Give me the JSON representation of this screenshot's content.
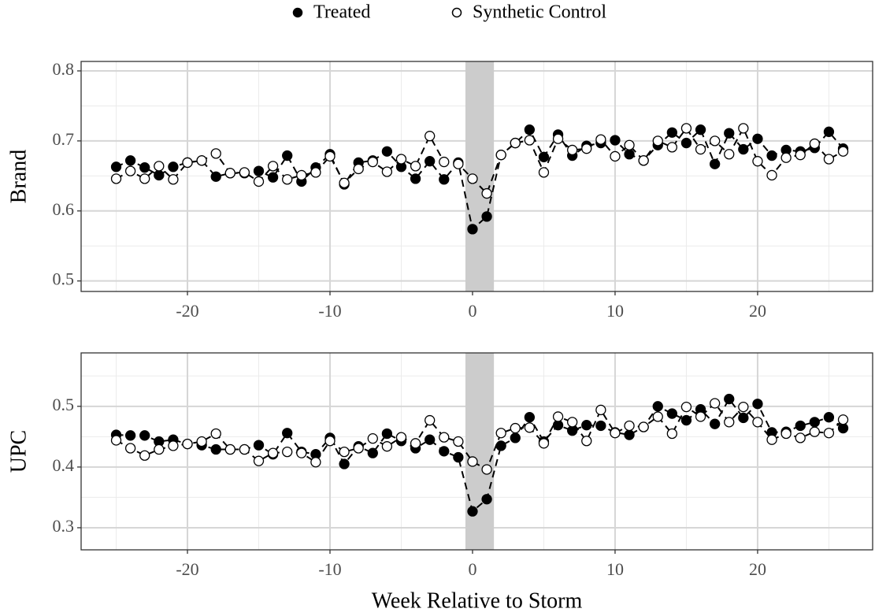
{
  "chart_data": [
    {
      "type": "line",
      "ylabel": "Brand",
      "x": [
        -25,
        -24,
        -23,
        -22,
        -21,
        -20,
        -19,
        -18,
        -17,
        -16,
        -15,
        -14,
        -13,
        -12,
        -11,
        -10,
        -9,
        -8,
        -7,
        -6,
        -5,
        -4,
        -3,
        -2,
        -1,
        0,
        1,
        2,
        3,
        4,
        5,
        6,
        7,
        8,
        9,
        10,
        11,
        12,
        13,
        14,
        15,
        16,
        17,
        18,
        19,
        20,
        21,
        22,
        23,
        24,
        25,
        26
      ],
      "series": [
        {
          "name": "Treated",
          "color": "#000000",
          "marker": "filled",
          "values": [
            0.663,
            0.672,
            0.662,
            0.651,
            0.663,
            0.669,
            0.672,
            0.649,
            0.654,
            0.654,
            0.657,
            0.648,
            0.679,
            0.642,
            0.662,
            0.681,
            0.638,
            0.669,
            0.672,
            0.685,
            0.663,
            0.646,
            0.671,
            0.645,
            0.669,
            0.574,
            0.592,
            0.68,
            0.697,
            0.716,
            0.677,
            0.709,
            0.679,
            0.693,
            0.697,
            0.701,
            0.681,
            0.672,
            0.694,
            0.712,
            0.697,
            0.716,
            0.667,
            0.711,
            0.688,
            0.703,
            0.679,
            0.687,
            0.685,
            0.69,
            0.713,
            0.689
          ]
        },
        {
          "name": "Synthetic Control",
          "color": "#000000",
          "marker": "open",
          "values": [
            0.646,
            0.657,
            0.646,
            0.664,
            0.645,
            0.669,
            0.672,
            0.682,
            0.654,
            0.655,
            0.642,
            0.664,
            0.645,
            0.651,
            0.655,
            0.678,
            0.64,
            0.66,
            0.67,
            0.656,
            0.674,
            0.664,
            0.707,
            0.67,
            0.667,
            0.646,
            0.625,
            0.68,
            0.697,
            0.701,
            0.655,
            0.703,
            0.687,
            0.689,
            0.702,
            0.678,
            0.694,
            0.672,
            0.7,
            0.691,
            0.718,
            0.688,
            0.7,
            0.681,
            0.718,
            0.671,
            0.651,
            0.676,
            0.68,
            0.696,
            0.674,
            0.685
          ]
        }
      ],
      "highlight_x": [
        -0.5,
        1.5
      ],
      "xlim": [
        -27.46,
        28.07
      ],
      "xticks": [
        -20,
        -10,
        0,
        10,
        20
      ],
      "xminor": [
        -25,
        -15,
        -5,
        5,
        15,
        25
      ],
      "ylim": [
        0.485,
        0.8135
      ],
      "yticks": [
        0.5,
        0.6,
        0.7,
        0.8
      ],
      "yminor": [
        0.55,
        0.65,
        0.75
      ],
      "grid": true
    },
    {
      "type": "line",
      "ylabel": "UPC",
      "xlabel": "Week Relative to Storm",
      "x": [
        -25,
        -24,
        -23,
        -22,
        -21,
        -20,
        -19,
        -18,
        -17,
        -16,
        -15,
        -14,
        -13,
        -12,
        -11,
        -10,
        -9,
        -8,
        -7,
        -6,
        -5,
        -4,
        -3,
        -2,
        -1,
        0,
        1,
        2,
        3,
        4,
        5,
        6,
        7,
        8,
        9,
        10,
        11,
        12,
        13,
        14,
        15,
        16,
        17,
        18,
        19,
        20,
        21,
        22,
        23,
        24,
        25,
        26
      ],
      "series": [
        {
          "name": "Treated",
          "color": "#000000",
          "marker": "filled",
          "values": [
            0.453,
            0.452,
            0.452,
            0.442,
            0.445,
            0.438,
            0.436,
            0.429,
            0.429,
            0.429,
            0.436,
            0.421,
            0.456,
            0.425,
            0.421,
            0.448,
            0.405,
            0.434,
            0.423,
            0.455,
            0.443,
            0.431,
            0.445,
            0.426,
            0.416,
            0.327,
            0.347,
            0.435,
            0.448,
            0.482,
            0.442,
            0.469,
            0.46,
            0.469,
            0.468,
            0.457,
            0.453,
            0.466,
            0.5,
            0.488,
            0.477,
            0.495,
            0.471,
            0.512,
            0.481,
            0.504,
            0.457,
            0.458,
            0.468,
            0.474,
            0.482,
            0.464
          ]
        },
        {
          "name": "Synthetic Control",
          "color": "#000000",
          "marker": "open",
          "values": [
            0.444,
            0.431,
            0.419,
            0.429,
            0.435,
            0.438,
            0.442,
            0.455,
            0.429,
            0.429,
            0.41,
            0.423,
            0.425,
            0.423,
            0.408,
            0.443,
            0.425,
            0.431,
            0.447,
            0.434,
            0.449,
            0.439,
            0.477,
            0.449,
            0.442,
            0.409,
            0.396,
            0.456,
            0.464,
            0.465,
            0.439,
            0.483,
            0.474,
            0.443,
            0.494,
            0.456,
            0.468,
            0.466,
            0.483,
            0.455,
            0.499,
            0.483,
            0.505,
            0.474,
            0.499,
            0.474,
            0.445,
            0.455,
            0.448,
            0.458,
            0.456,
            0.478
          ]
        }
      ],
      "highlight_x": [
        -0.5,
        1.5
      ],
      "xlim": [
        -27.46,
        28.07
      ],
      "xticks": [
        -20,
        -10,
        0,
        10,
        20
      ],
      "xminor": [
        -25,
        -15,
        -5,
        5,
        15,
        25
      ],
      "ylim": [
        0.2636,
        0.588
      ],
      "yticks": [
        0.3,
        0.4,
        0.5
      ],
      "yminor": [
        0.35,
        0.45,
        0.55
      ],
      "grid": true
    }
  ]
}
